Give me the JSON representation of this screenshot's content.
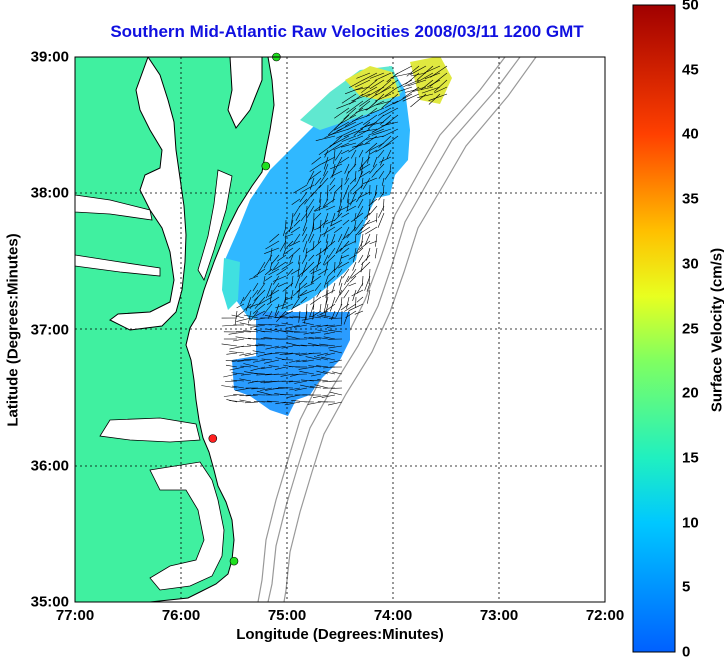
{
  "title": "Southern Mid-Atlantic Raw Velocities 2008/03/11 1200 GMT",
  "xlabel": "Longitude (Degrees:Minutes)",
  "ylabel": "Latitude (Degrees:Minutes)",
  "colorbar": {
    "label": "Surface Velocity (cm/s)",
    "ticks": [
      "0",
      "5",
      "10",
      "15",
      "20",
      "25",
      "30",
      "35",
      "40",
      "45",
      "50"
    ],
    "range": [
      0,
      50
    ]
  },
  "x_ticks": [
    "77:00",
    "76:00",
    "75:00",
    "74:00",
    "73:00",
    "72:00"
  ],
  "y_ticks": [
    "39:00",
    "38:00",
    "37:00",
    "36:00",
    "35:00"
  ],
  "map": {
    "extent": {
      "lon": [
        -77,
        -72
      ],
      "lat": [
        35,
        39
      ]
    },
    "land_color": "#40f0a0",
    "stations": [
      {
        "lon": -75.1,
        "lat": 39.0,
        "color": "#20e020"
      },
      {
        "lon": -75.2,
        "lat": 38.2,
        "color": "#20e020"
      },
      {
        "lon": -75.7,
        "lat": 36.2,
        "color": "#ff2020"
      },
      {
        "lon": -75.5,
        "lat": 35.3,
        "color": "#20e020"
      }
    ]
  }
}
